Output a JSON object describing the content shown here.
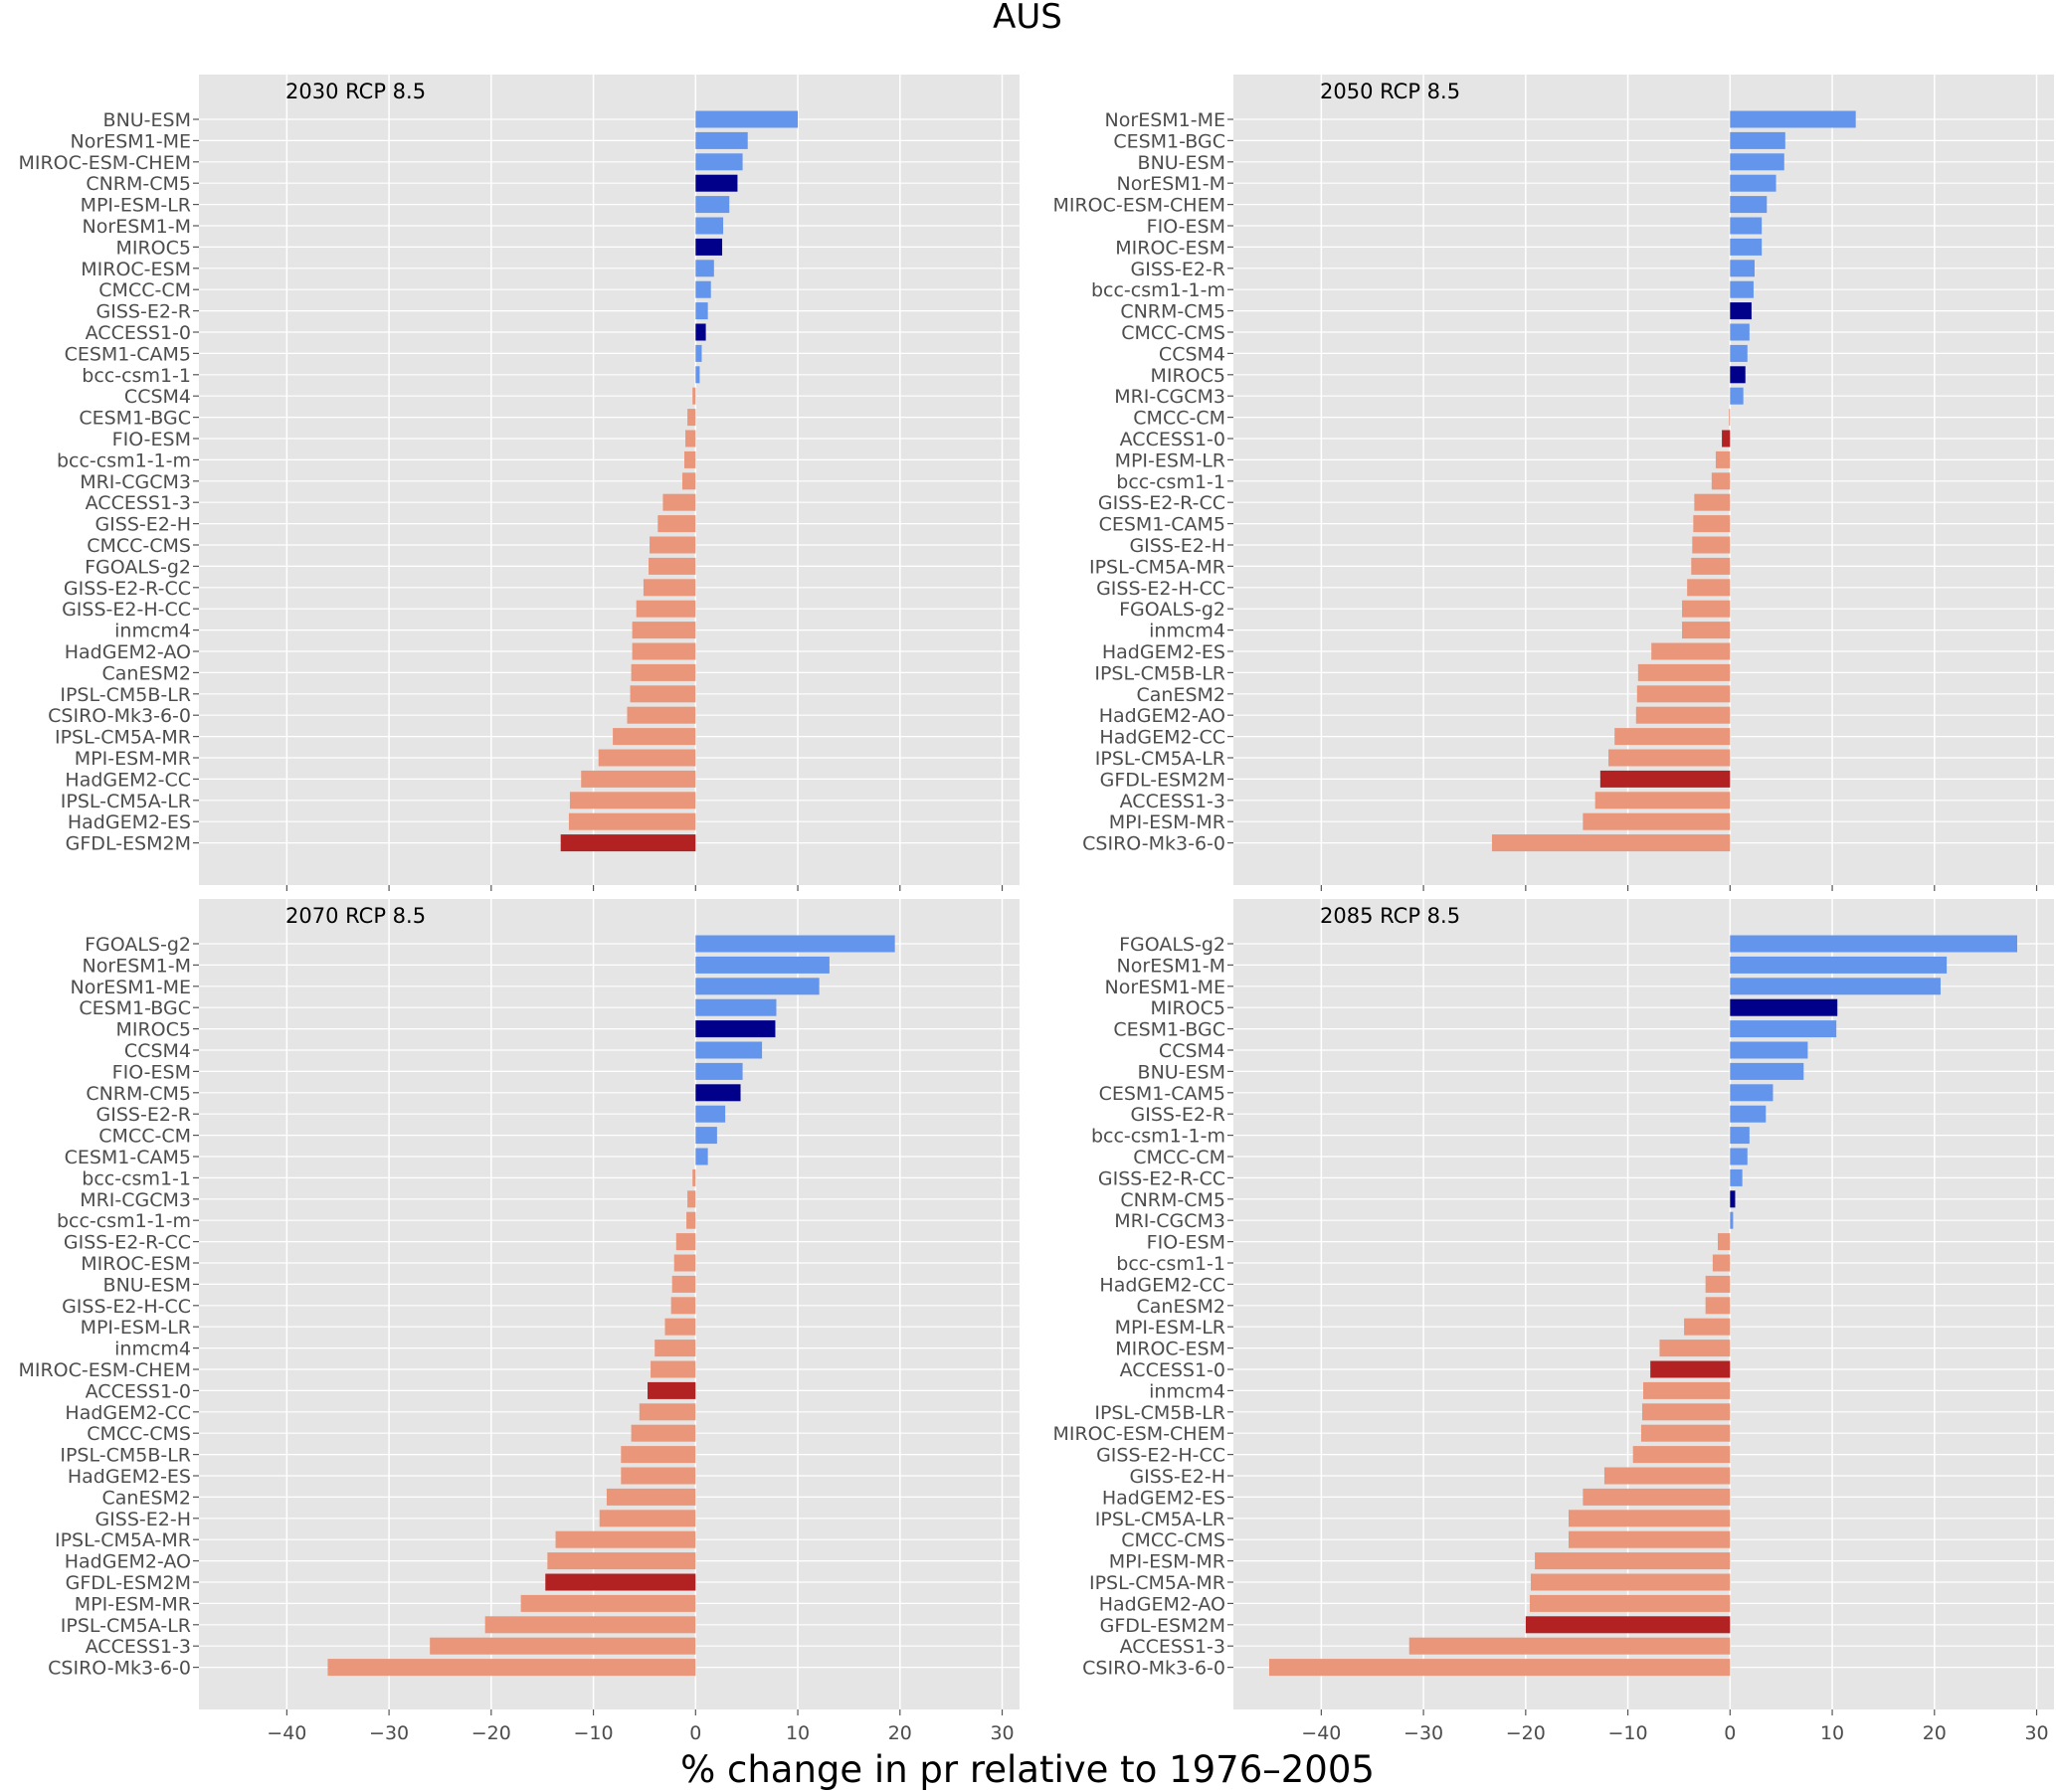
{
  "chart_data": {
    "type": "bar",
    "orientation": "horizontal",
    "title": "AUS",
    "xlabel": "% change in pr relative to 1976–2005",
    "xlim": [
      -48.6,
      31.7
    ],
    "xticks": [
      -40,
      -30,
      -20,
      -10,
      0,
      10,
      20,
      30
    ],
    "xtick_labels": [
      "−40",
      "−30",
      "−20",
      "−10",
      "0",
      "10",
      "20",
      "30"
    ],
    "grid": true,
    "colors": {
      "positive": "#6495ed",
      "positive_highlight": "#00008b",
      "negative": "#e9967a",
      "negative_highlight": "#b22222",
      "axes_bg": "#e5e5e5",
      "grid": "#ffffff"
    },
    "highlighted_models": [
      "CNRM-CM5",
      "MIROC5",
      "ACCESS1-0",
      "GFDL-ESM2M"
    ],
    "panels": [
      {
        "title": "2030 RCP 8.5",
        "categories": [
          "BNU-ESM",
          "NorESM1-ME",
          "MIROC-ESM-CHEM",
          "CNRM-CM5",
          "MPI-ESM-LR",
          "NorESM1-M",
          "MIROC5",
          "MIROC-ESM",
          "CMCC-CM",
          "GISS-E2-R",
          "ACCESS1-0",
          "CESM1-CAM5",
          "bcc-csm1-1",
          "CCSM4",
          "CESM1-BGC",
          "FIO-ESM",
          "bcc-csm1-1-m",
          "MRI-CGCM3",
          "ACCESS1-3",
          "GISS-E2-H",
          "CMCC-CMS",
          "FGOALS-g2",
          "GISS-E2-R-CC",
          "GISS-E2-H-CC",
          "inmcm4",
          "HadGEM2-AO",
          "CanESM2",
          "IPSL-CM5B-LR",
          "CSIRO-Mk3-6-0",
          "IPSL-CM5A-MR",
          "MPI-ESM-MR",
          "HadGEM2-CC",
          "IPSL-CM5A-LR",
          "HadGEM2-ES",
          "GFDL-ESM2M"
        ],
        "values": [
          10.0,
          5.1,
          4.6,
          4.1,
          3.3,
          2.7,
          2.6,
          1.8,
          1.5,
          1.2,
          1.0,
          0.6,
          0.4,
          -0.3,
          -0.8,
          -1.0,
          -1.1,
          -1.3,
          -3.2,
          -3.7,
          -4.5,
          -4.6,
          -5.1,
          -5.8,
          -6.2,
          -6.2,
          -6.3,
          -6.4,
          -6.7,
          -8.1,
          -9.5,
          -11.2,
          -12.3,
          -12.4,
          -13.2
        ]
      },
      {
        "title": "2050 RCP 8.5",
        "categories": [
          "NorESM1-ME",
          "CESM1-BGC",
          "BNU-ESM",
          "NorESM1-M",
          "MIROC-ESM-CHEM",
          "FIO-ESM",
          "MIROC-ESM",
          "GISS-E2-R",
          "bcc-csm1-1-m",
          "CNRM-CM5",
          "CMCC-CMS",
          "CCSM4",
          "MIROC5",
          "MRI-CGCM3",
          "CMCC-CM",
          "ACCESS1-0",
          "MPI-ESM-LR",
          "bcc-csm1-1",
          "GISS-E2-R-CC",
          "CESM1-CAM5",
          "GISS-E2-H",
          "IPSL-CM5A-MR",
          "GISS-E2-H-CC",
          "FGOALS-g2",
          "inmcm4",
          "HadGEM2-ES",
          "IPSL-CM5B-LR",
          "CanESM2",
          "HadGEM2-AO",
          "HadGEM2-CC",
          "IPSL-CM5A-LR",
          "GFDL-ESM2M",
          "ACCESS1-3",
          "MPI-ESM-MR",
          "CSIRO-Mk3-6-0"
        ],
        "values": [
          12.3,
          5.4,
          5.3,
          4.5,
          3.6,
          3.1,
          3.1,
          2.4,
          2.3,
          2.1,
          1.9,
          1.7,
          1.5,
          1.3,
          -0.1,
          -0.8,
          -1.4,
          -1.8,
          -3.5,
          -3.6,
          -3.7,
          -3.8,
          -4.2,
          -4.7,
          -4.7,
          -7.7,
          -9.0,
          -9.1,
          -9.2,
          -11.3,
          -11.9,
          -12.7,
          -13.2,
          -14.4,
          -23.3
        ]
      },
      {
        "title": "2070 RCP 8.5",
        "categories": [
          "FGOALS-g2",
          "NorESM1-M",
          "NorESM1-ME",
          "CESM1-BGC",
          "MIROC5",
          "CCSM4",
          "FIO-ESM",
          "CNRM-CM5",
          "GISS-E2-R",
          "CMCC-CM",
          "CESM1-CAM5",
          "bcc-csm1-1",
          "MRI-CGCM3",
          "bcc-csm1-1-m",
          "GISS-E2-R-CC",
          "MIROC-ESM",
          "BNU-ESM",
          "GISS-E2-H-CC",
          "MPI-ESM-LR",
          "inmcm4",
          "MIROC-ESM-CHEM",
          "ACCESS1-0",
          "HadGEM2-CC",
          "CMCC-CMS",
          "IPSL-CM5B-LR",
          "HadGEM2-ES",
          "CanESM2",
          "GISS-E2-H",
          "IPSL-CM5A-MR",
          "HadGEM2-AO",
          "GFDL-ESM2M",
          "MPI-ESM-MR",
          "IPSL-CM5A-LR",
          "ACCESS1-3",
          "CSIRO-Mk3-6-0"
        ],
        "values": [
          19.5,
          13.1,
          12.1,
          7.9,
          7.8,
          6.5,
          4.6,
          4.4,
          2.9,
          2.1,
          1.2,
          -0.3,
          -0.8,
          -0.9,
          -1.9,
          -2.1,
          -2.3,
          -2.4,
          -3.0,
          -4.0,
          -4.4,
          -4.7,
          -5.5,
          -6.3,
          -7.3,
          -7.3,
          -8.7,
          -9.4,
          -13.7,
          -14.5,
          -14.7,
          -17.1,
          -20.6,
          -26.0,
          -36.0
        ]
      },
      {
        "title": "2085 RCP 8.5",
        "categories": [
          "FGOALS-g2",
          "NorESM1-M",
          "NorESM1-ME",
          "MIROC5",
          "CESM1-BGC",
          "CCSM4",
          "BNU-ESM",
          "CESM1-CAM5",
          "GISS-E2-R",
          "bcc-csm1-1-m",
          "CMCC-CM",
          "GISS-E2-R-CC",
          "CNRM-CM5",
          "MRI-CGCM3",
          "FIO-ESM",
          "bcc-csm1-1",
          "HadGEM2-CC",
          "CanESM2",
          "MPI-ESM-LR",
          "MIROC-ESM",
          "ACCESS1-0",
          "inmcm4",
          "IPSL-CM5B-LR",
          "MIROC-ESM-CHEM",
          "GISS-E2-H-CC",
          "GISS-E2-H",
          "HadGEM2-ES",
          "IPSL-CM5A-LR",
          "CMCC-CMS",
          "MPI-ESM-MR",
          "IPSL-CM5A-MR",
          "HadGEM2-AO",
          "GFDL-ESM2M",
          "ACCESS1-3",
          "CSIRO-Mk3-6-0"
        ],
        "values": [
          28.1,
          21.2,
          20.6,
          10.5,
          10.4,
          7.6,
          7.2,
          4.2,
          3.5,
          1.9,
          1.7,
          1.2,
          0.5,
          0.3,
          -1.2,
          -1.7,
          -2.4,
          -2.4,
          -4.5,
          -6.9,
          -7.8,
          -8.5,
          -8.6,
          -8.7,
          -9.5,
          -12.3,
          -14.4,
          -15.8,
          -15.8,
          -19.1,
          -19.5,
          -19.6,
          -20.0,
          -31.4,
          -45.1
        ]
      }
    ]
  }
}
